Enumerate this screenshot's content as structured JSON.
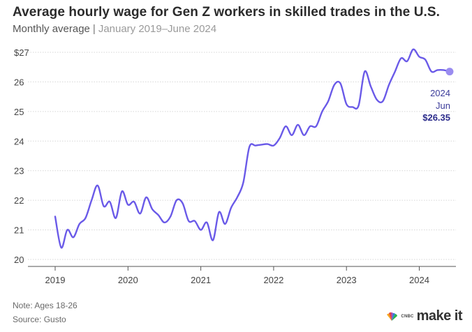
{
  "header": {
    "title": "Average hourly wage for Gen Z workers in skilled trades in the U.S.",
    "subtitle_prefix": "Monthly average",
    "subtitle_separator": "|",
    "subtitle_range": "January 2019–June 2024"
  },
  "footer": {
    "note": "Note: Ages 18-26",
    "source": "Source: Gusto",
    "brand_small": "CNBC",
    "brand_large": "make it"
  },
  "callout": {
    "year": "2024",
    "month": "Jun",
    "value": "$26.35"
  },
  "colors": {
    "line": "#6a5ae8",
    "endpoint": "#9a8cf0",
    "grid": "#d6d6d6",
    "axis": "#555555"
  },
  "chart_data": {
    "type": "line",
    "title": "Average hourly wage for Gen Z workers in skilled trades in the U.S.",
    "subtitle": "Monthly average | January 2019–June 2024",
    "xlabel": "",
    "ylabel": "",
    "ylim": [
      20,
      27
    ],
    "y_ticks": [
      "20",
      "21",
      "22",
      "23",
      "24",
      "25",
      "26",
      "$27"
    ],
    "x_ticks": [
      "2019",
      "2020",
      "2021",
      "2022",
      "2023",
      "2024"
    ],
    "grid": true,
    "series": [
      {
        "points": [
          [
            "2019-01",
            21.45
          ],
          [
            "2019-02",
            20.4
          ],
          [
            "2019-03",
            21.0
          ],
          [
            "2019-04",
            20.75
          ],
          [
            "2019-05",
            21.2
          ],
          [
            "2019-06",
            21.4
          ],
          [
            "2019-07",
            22.0
          ],
          [
            "2019-08",
            22.5
          ],
          [
            "2019-09",
            21.8
          ],
          [
            "2019-10",
            21.95
          ],
          [
            "2019-11",
            21.4
          ],
          [
            "2019-12",
            22.3
          ],
          [
            "2020-01",
            21.85
          ],
          [
            "2020-02",
            21.95
          ],
          [
            "2020-03",
            21.55
          ],
          [
            "2020-04",
            22.1
          ],
          [
            "2020-05",
            21.7
          ],
          [
            "2020-06",
            21.5
          ],
          [
            "2020-07",
            21.25
          ],
          [
            "2020-08",
            21.45
          ],
          [
            "2020-09",
            22.0
          ],
          [
            "2020-10",
            21.9
          ],
          [
            "2020-11",
            21.3
          ],
          [
            "2020-12",
            21.3
          ],
          [
            "2021-01",
            21.0
          ],
          [
            "2021-02",
            21.25
          ],
          [
            "2021-03",
            20.65
          ],
          [
            "2021-04",
            21.6
          ],
          [
            "2021-05",
            21.2
          ],
          [
            "2021-06",
            21.75
          ],
          [
            "2021-07",
            22.1
          ],
          [
            "2021-08",
            22.6
          ],
          [
            "2021-09",
            23.8
          ],
          [
            "2021-10",
            23.85
          ],
          [
            "2021-11",
            23.88
          ],
          [
            "2021-12",
            23.9
          ],
          [
            "2022-01",
            23.85
          ],
          [
            "2022-02",
            24.1
          ],
          [
            "2022-03",
            24.5
          ],
          [
            "2022-04",
            24.2
          ],
          [
            "2022-05",
            24.55
          ],
          [
            "2022-06",
            24.2
          ],
          [
            "2022-07",
            24.5
          ],
          [
            "2022-08",
            24.5
          ],
          [
            "2022-09",
            25.0
          ],
          [
            "2022-10",
            25.35
          ],
          [
            "2022-11",
            25.9
          ],
          [
            "2022-12",
            25.95
          ],
          [
            "2023-01",
            25.25
          ],
          [
            "2023-02",
            25.15
          ],
          [
            "2023-03",
            25.2
          ],
          [
            "2023-04",
            26.35
          ],
          [
            "2023-05",
            25.85
          ],
          [
            "2023-06",
            25.4
          ],
          [
            "2023-07",
            25.35
          ],
          [
            "2023-08",
            25.9
          ],
          [
            "2023-09",
            26.35
          ],
          [
            "2023-10",
            26.8
          ],
          [
            "2023-11",
            26.7
          ],
          [
            "2023-12",
            27.1
          ],
          [
            "2024-01",
            26.85
          ],
          [
            "2024-02",
            26.75
          ],
          [
            "2024-03",
            26.35
          ],
          [
            "2024-04",
            26.4
          ],
          [
            "2024-05",
            26.4
          ],
          [
            "2024-06",
            26.35
          ]
        ]
      }
    ]
  }
}
